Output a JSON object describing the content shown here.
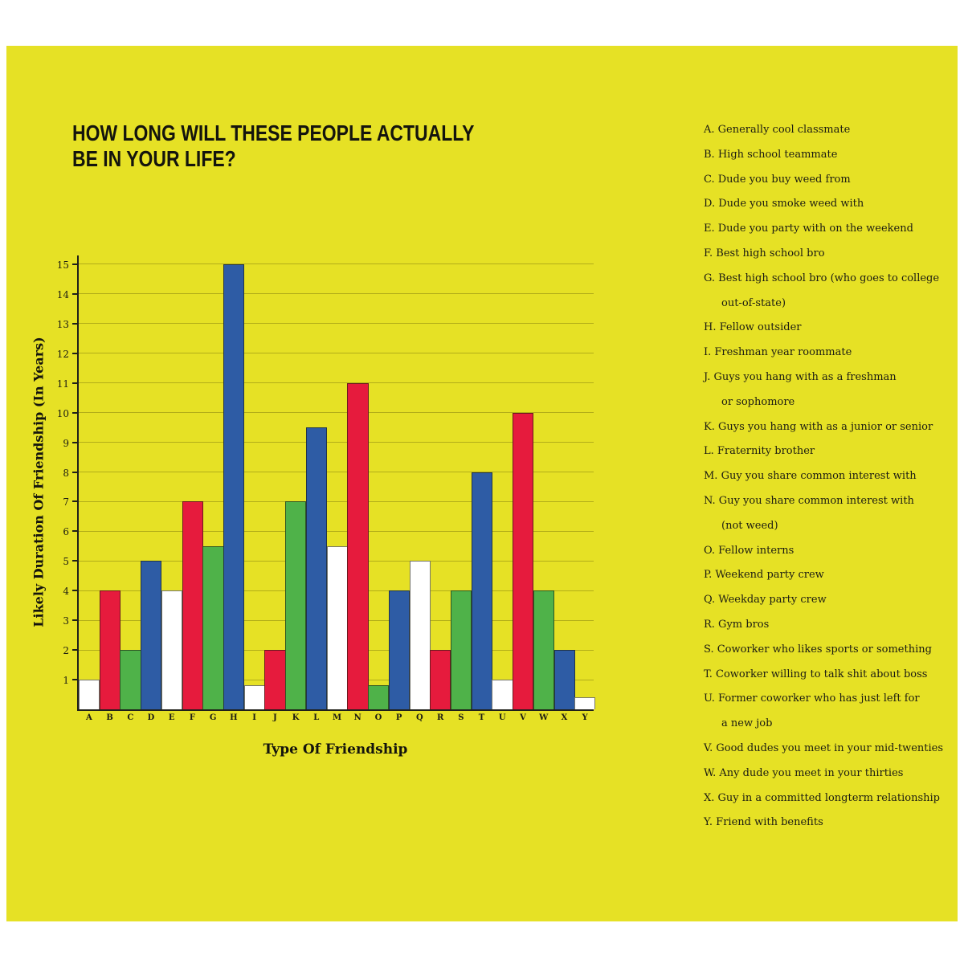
{
  "header": {
    "title_lines": [
      "HOW LONG WILL THESE PEOPLE ACTUALLY",
      "BE IN YOUR LIFE?"
    ]
  },
  "chart_data": {
    "type": "bar",
    "title": "HOW LONG WILL THESE PEOPLE ACTUALLY BE IN YOUR LIFE?",
    "xlabel": "Type Of Friendship",
    "ylabel": "Likely Duration Of Friendship (In Years)",
    "ylim": [
      0,
      15.35
    ],
    "yticks": [
      1,
      2,
      3,
      4,
      5,
      6,
      7,
      8,
      9,
      10,
      11,
      12,
      13,
      14,
      15
    ],
    "grid": "horizontal",
    "legend_position": "right",
    "categories": [
      "A",
      "B",
      "C",
      "D",
      "E",
      "F",
      "G",
      "H",
      "I",
      "J",
      "K",
      "L",
      "M",
      "N",
      "O",
      "P",
      "Q",
      "R",
      "S",
      "T",
      "U",
      "V",
      "W",
      "X",
      "Y"
    ],
    "values": [
      1,
      4,
      2,
      5,
      4,
      7,
      5.5,
      15,
      0.8,
      2,
      7,
      9.5,
      5.5,
      11,
      0.8,
      4,
      5,
      2,
      4,
      8,
      1,
      10,
      4,
      2,
      0.4
    ],
    "color_cycle": [
      "#ffffff",
      "#e61b3d",
      "#4fb249",
      "#2e5ca5"
    ],
    "legend": [
      {
        "letter": "A",
        "lines": [
          "Generally cool classmate"
        ]
      },
      {
        "letter": "B",
        "lines": [
          "High school teammate"
        ]
      },
      {
        "letter": "C",
        "lines": [
          "Dude you buy weed from"
        ]
      },
      {
        "letter": "D",
        "lines": [
          "Dude you smoke weed with"
        ]
      },
      {
        "letter": "E",
        "lines": [
          "Dude you party with on the weekend"
        ]
      },
      {
        "letter": "F",
        "lines": [
          "Best high school bro"
        ]
      },
      {
        "letter": "G",
        "lines": [
          "Best high school bro (who goes to college",
          "out-of-state)"
        ]
      },
      {
        "letter": "H",
        "lines": [
          "Fellow outsider"
        ]
      },
      {
        "letter": "I",
        "lines": [
          "Freshman year roommate"
        ]
      },
      {
        "letter": "J",
        "lines": [
          "Guys you hang with as a freshman",
          "or sophomore"
        ]
      },
      {
        "letter": "K",
        "lines": [
          "Guys you hang with as a junior or senior"
        ]
      },
      {
        "letter": "L",
        "lines": [
          "Fraternity brother"
        ]
      },
      {
        "letter": "M",
        "lines": [
          "Guy you share common interest with"
        ]
      },
      {
        "letter": "N",
        "lines": [
          "Guy you share common interest with",
          "(not weed)"
        ]
      },
      {
        "letter": "O",
        "lines": [
          "Fellow interns"
        ]
      },
      {
        "letter": "P",
        "lines": [
          "Weekend party crew"
        ]
      },
      {
        "letter": "Q",
        "lines": [
          "Weekday party crew"
        ]
      },
      {
        "letter": "R",
        "lines": [
          "Gym bros"
        ]
      },
      {
        "letter": "S",
        "lines": [
          "Coworker who likes sports or something"
        ]
      },
      {
        "letter": "T",
        "lines": [
          "Coworker willing to talk shit about boss"
        ]
      },
      {
        "letter": "U",
        "lines": [
          "Former coworker who has just left for",
          "a new job"
        ]
      },
      {
        "letter": "V",
        "lines": [
          "Good dudes you meet in your mid-twenties"
        ]
      },
      {
        "letter": "W",
        "lines": [
          "Any dude you meet in your thirties"
        ]
      },
      {
        "letter": "X",
        "lines": [
          "Guy in a committed longterm relationship"
        ]
      },
      {
        "letter": "Y",
        "lines": [
          "Friend with benefits"
        ]
      }
    ]
  },
  "colors": {
    "background": "#e6e125",
    "frame": "#ffffff",
    "gridline": "#a8a317",
    "axis": "#20201a",
    "text": "#1c1c12",
    "bar_white": "#ffffff",
    "bar_red": "#e61b3d",
    "bar_green": "#4fb249",
    "bar_blue": "#2e5ca5"
  }
}
